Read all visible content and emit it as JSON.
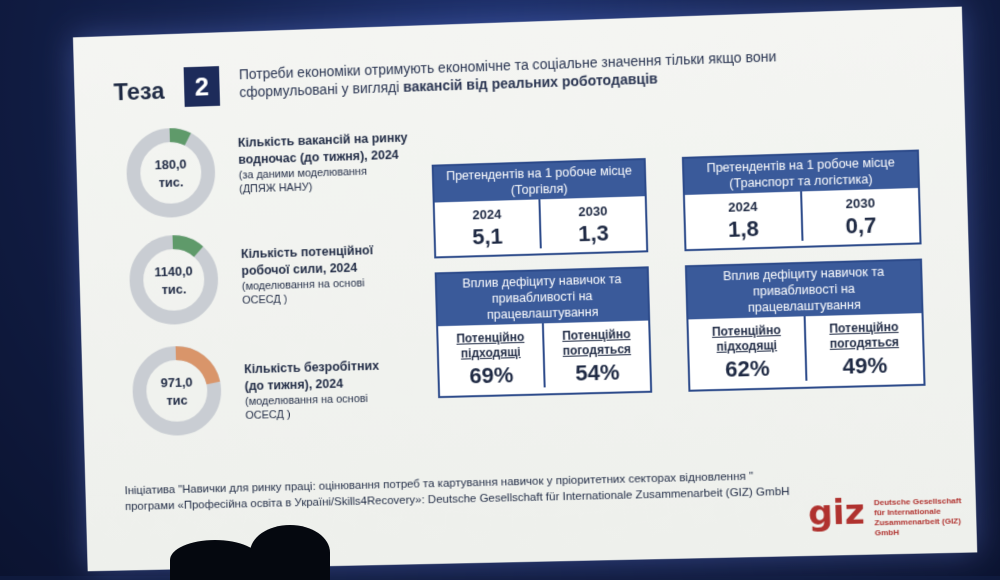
{
  "thesis": {
    "word": "Теза",
    "number": "2"
  },
  "headline": {
    "line1": "Потреби економіки отримують економічне та соціальне значення тільки якщо вони",
    "line2_plain": "сформульовані у вигляді ",
    "line2_bold": "вакансій від реальних роботодавців"
  },
  "donuts": [
    {
      "value": "180,0",
      "unit": "тис.",
      "share": 0.08,
      "accent": "#5f9a6a",
      "title1": "Кількість вакансій на ринку",
      "title2": "водночас (до тижня), 2024",
      "note1": "(за даними моделювання",
      "note2": "(ДПЯЖ НАНУ)"
    },
    {
      "value": "1140,0",
      "unit": "тис.",
      "share": 0.12,
      "accent": "#5f9a6a",
      "title1": "Кількість потенційної",
      "title2": "робочої сили, 2024",
      "note1": "(моделювання на основі",
      "note2": "ОСЕСД )"
    },
    {
      "value": "971,0",
      "unit": "тис",
      "share": 0.22,
      "accent": "#d9956a",
      "title1": "Кількість безробітних",
      "title2": "(до тижня), 2024",
      "note1": "(моделювання на основі",
      "note2": "ОСЕСД )"
    }
  ],
  "boxes": {
    "trade": {
      "header1": "Претендентів на 1 робоче місце",
      "header2": "(Торгівля)",
      "col1_year": "2024",
      "col1_value": "5,1",
      "col2_year": "2030",
      "col2_value": "1,3"
    },
    "transport": {
      "header1": "Претендентів на 1 робоче місце",
      "header2": "(Транспорт та логістика)",
      "col1_year": "2024",
      "col1_value": "1,8",
      "col2_year": "2030",
      "col2_value": "0,7"
    },
    "impact_trade": {
      "header1": "Вплив дефіциту навичок та",
      "header2": "привабливості  на",
      "header3": "працевлаштування",
      "col1_label1": "Потенційно",
      "col1_label2": "підходящі",
      "col1_value": "69%",
      "col2_label1": "Потенційно",
      "col2_label2": "погодяться",
      "col2_value": "54%"
    },
    "impact_transport": {
      "header1": "Вплив дефіциту навичок та",
      "header2": "привабливості  на",
      "header3": "працевлаштування",
      "col1_label1": "Потенційно",
      "col1_label2": "підходящі",
      "col1_value": "62%",
      "col2_label1": "Потенційно",
      "col2_label2": "погодяться",
      "col2_value": "49%"
    }
  },
  "footer": {
    "line1": "Ініціатива \"Навички для ринку праці: оцінювання потреб та картування навичок у пріоритетних секторах відновлення \"",
    "line2": "програми «Професійна освіта в Україні/Skills4Recovery»: Deutsche Gesellschaft für Internationale Zusammenarbeit (GIZ) GmbH"
  },
  "logo": {
    "mark": "giz",
    "line1": "Deutsche Gesellschaft",
    "line2": "für Internationale",
    "line3": "Zusammenarbeit (GIZ) GmbH"
  },
  "colors": {
    "navy": "#1d2b5a",
    "box_header": "#3a5a9a",
    "donut_base": "#c9cdd3",
    "giz_red": "#b0322f"
  }
}
